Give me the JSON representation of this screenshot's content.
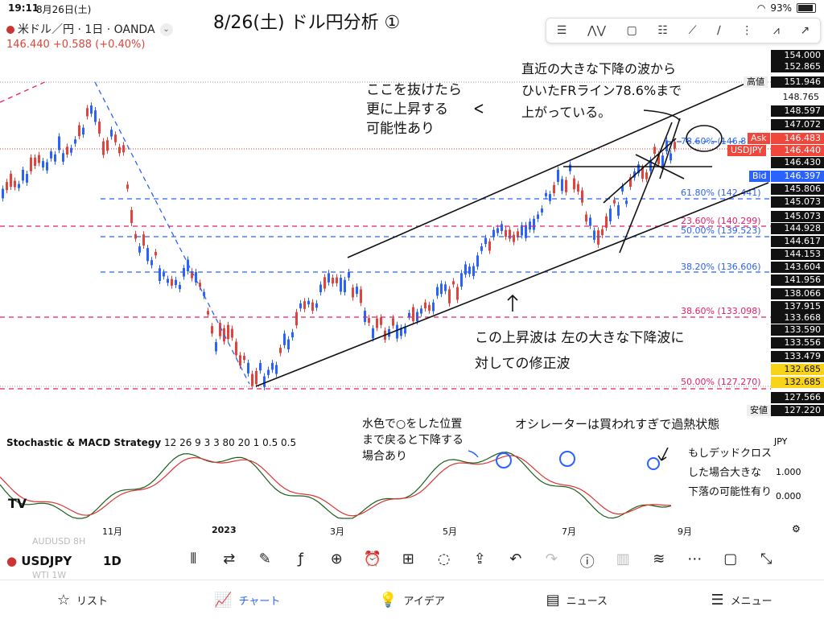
{
  "status": {
    "time": "19:11",
    "date": "8月26日(土)",
    "battery": "93%"
  },
  "symbol": {
    "title": "米ドル／円 · 1日 · OANDA",
    "price": "146.440",
    "change": "+0.588 (+0.40%)"
  },
  "handwritten": {
    "title": "8/26(土) ドル円分析 ①",
    "note1": [
      "ここを抜けたら",
      "更に上昇する",
      "可能性あり"
    ],
    "note2": [
      "直近の大きな下降の波から",
      "ひいたFRライン78.6%まで",
      "上がっている。"
    ],
    "note3": [
      "この上昇波は 左の大きな下降波に",
      "対しての修正波"
    ],
    "note4": [
      "水色で○をした位置",
      "まで戻ると下降する",
      "場合あり"
    ],
    "note5": [
      "オシレーターは買われすぎで過熱状態"
    ],
    "note6": [
      "もしデッドクロス",
      "した場合大きな",
      "下落の可能性有り"
    ]
  },
  "fib_levels": [
    {
      "label": "78.60% (146.8",
      "color": "#2962ff"
    },
    {
      "label": "61.80% (142.441)",
      "color": "#2962ff"
    },
    {
      "label": "23.60% (140.299)",
      "color": "#e91e63"
    },
    {
      "label": "50.00% (139.523)",
      "color": "#2962ff"
    },
    {
      "label": "38.20% (136.606)",
      "color": "#2962ff"
    },
    {
      "label": "38.60% (133.098)",
      "color": "#e91e63"
    },
    {
      "label": "50.00% (127.270)",
      "color": "#e91e63"
    }
  ],
  "axis": {
    "prices": [
      "154.000",
      "152.865",
      "151.946",
      "148.765",
      "148.597",
      "147.072",
      "146.483",
      "146.440",
      "146.430",
      "146.397",
      "145.806",
      "145.073",
      "145.073",
      "144.928",
      "144.617",
      "144.153",
      "143.604",
      "141.956",
      "138.066",
      "137.915",
      "133.668",
      "133.590",
      "133.556",
      "133.479",
      "132.685",
      "132.685",
      "127.566",
      "127.220"
    ],
    "tags": {
      "high": "高値",
      "ask": "Ask",
      "symbol": "USDJPY",
      "bid": "Bid",
      "low": "安値"
    }
  },
  "oscillator": {
    "title": "Stochastic & MACD Strategy",
    "params": "12 26 9 3 3 80 20 1 0.5 0.5",
    "axis": [
      "JPY",
      "1.000",
      "0.000"
    ]
  },
  "xaxis": [
    "11月",
    "2023",
    "3月",
    "5月",
    "7月",
    "9月"
  ],
  "ghost_list": [
    "AUDUSD  8H",
    "WTI  1W"
  ],
  "bottom": {
    "symbol": "USDJPY",
    "timeframe": "1D"
  },
  "tabs": [
    {
      "label": "リスト",
      "icon": "star-icon"
    },
    {
      "label": "チャート",
      "icon": "chart-icon"
    },
    {
      "label": "アイデア",
      "icon": "idea-icon"
    },
    {
      "label": "ニュース",
      "icon": "news-icon"
    },
    {
      "label": "メニュー",
      "icon": "menu-icon"
    }
  ],
  "colors": {
    "up": "#e0443c",
    "down": "#2962ff",
    "accent": "#2962ff"
  }
}
